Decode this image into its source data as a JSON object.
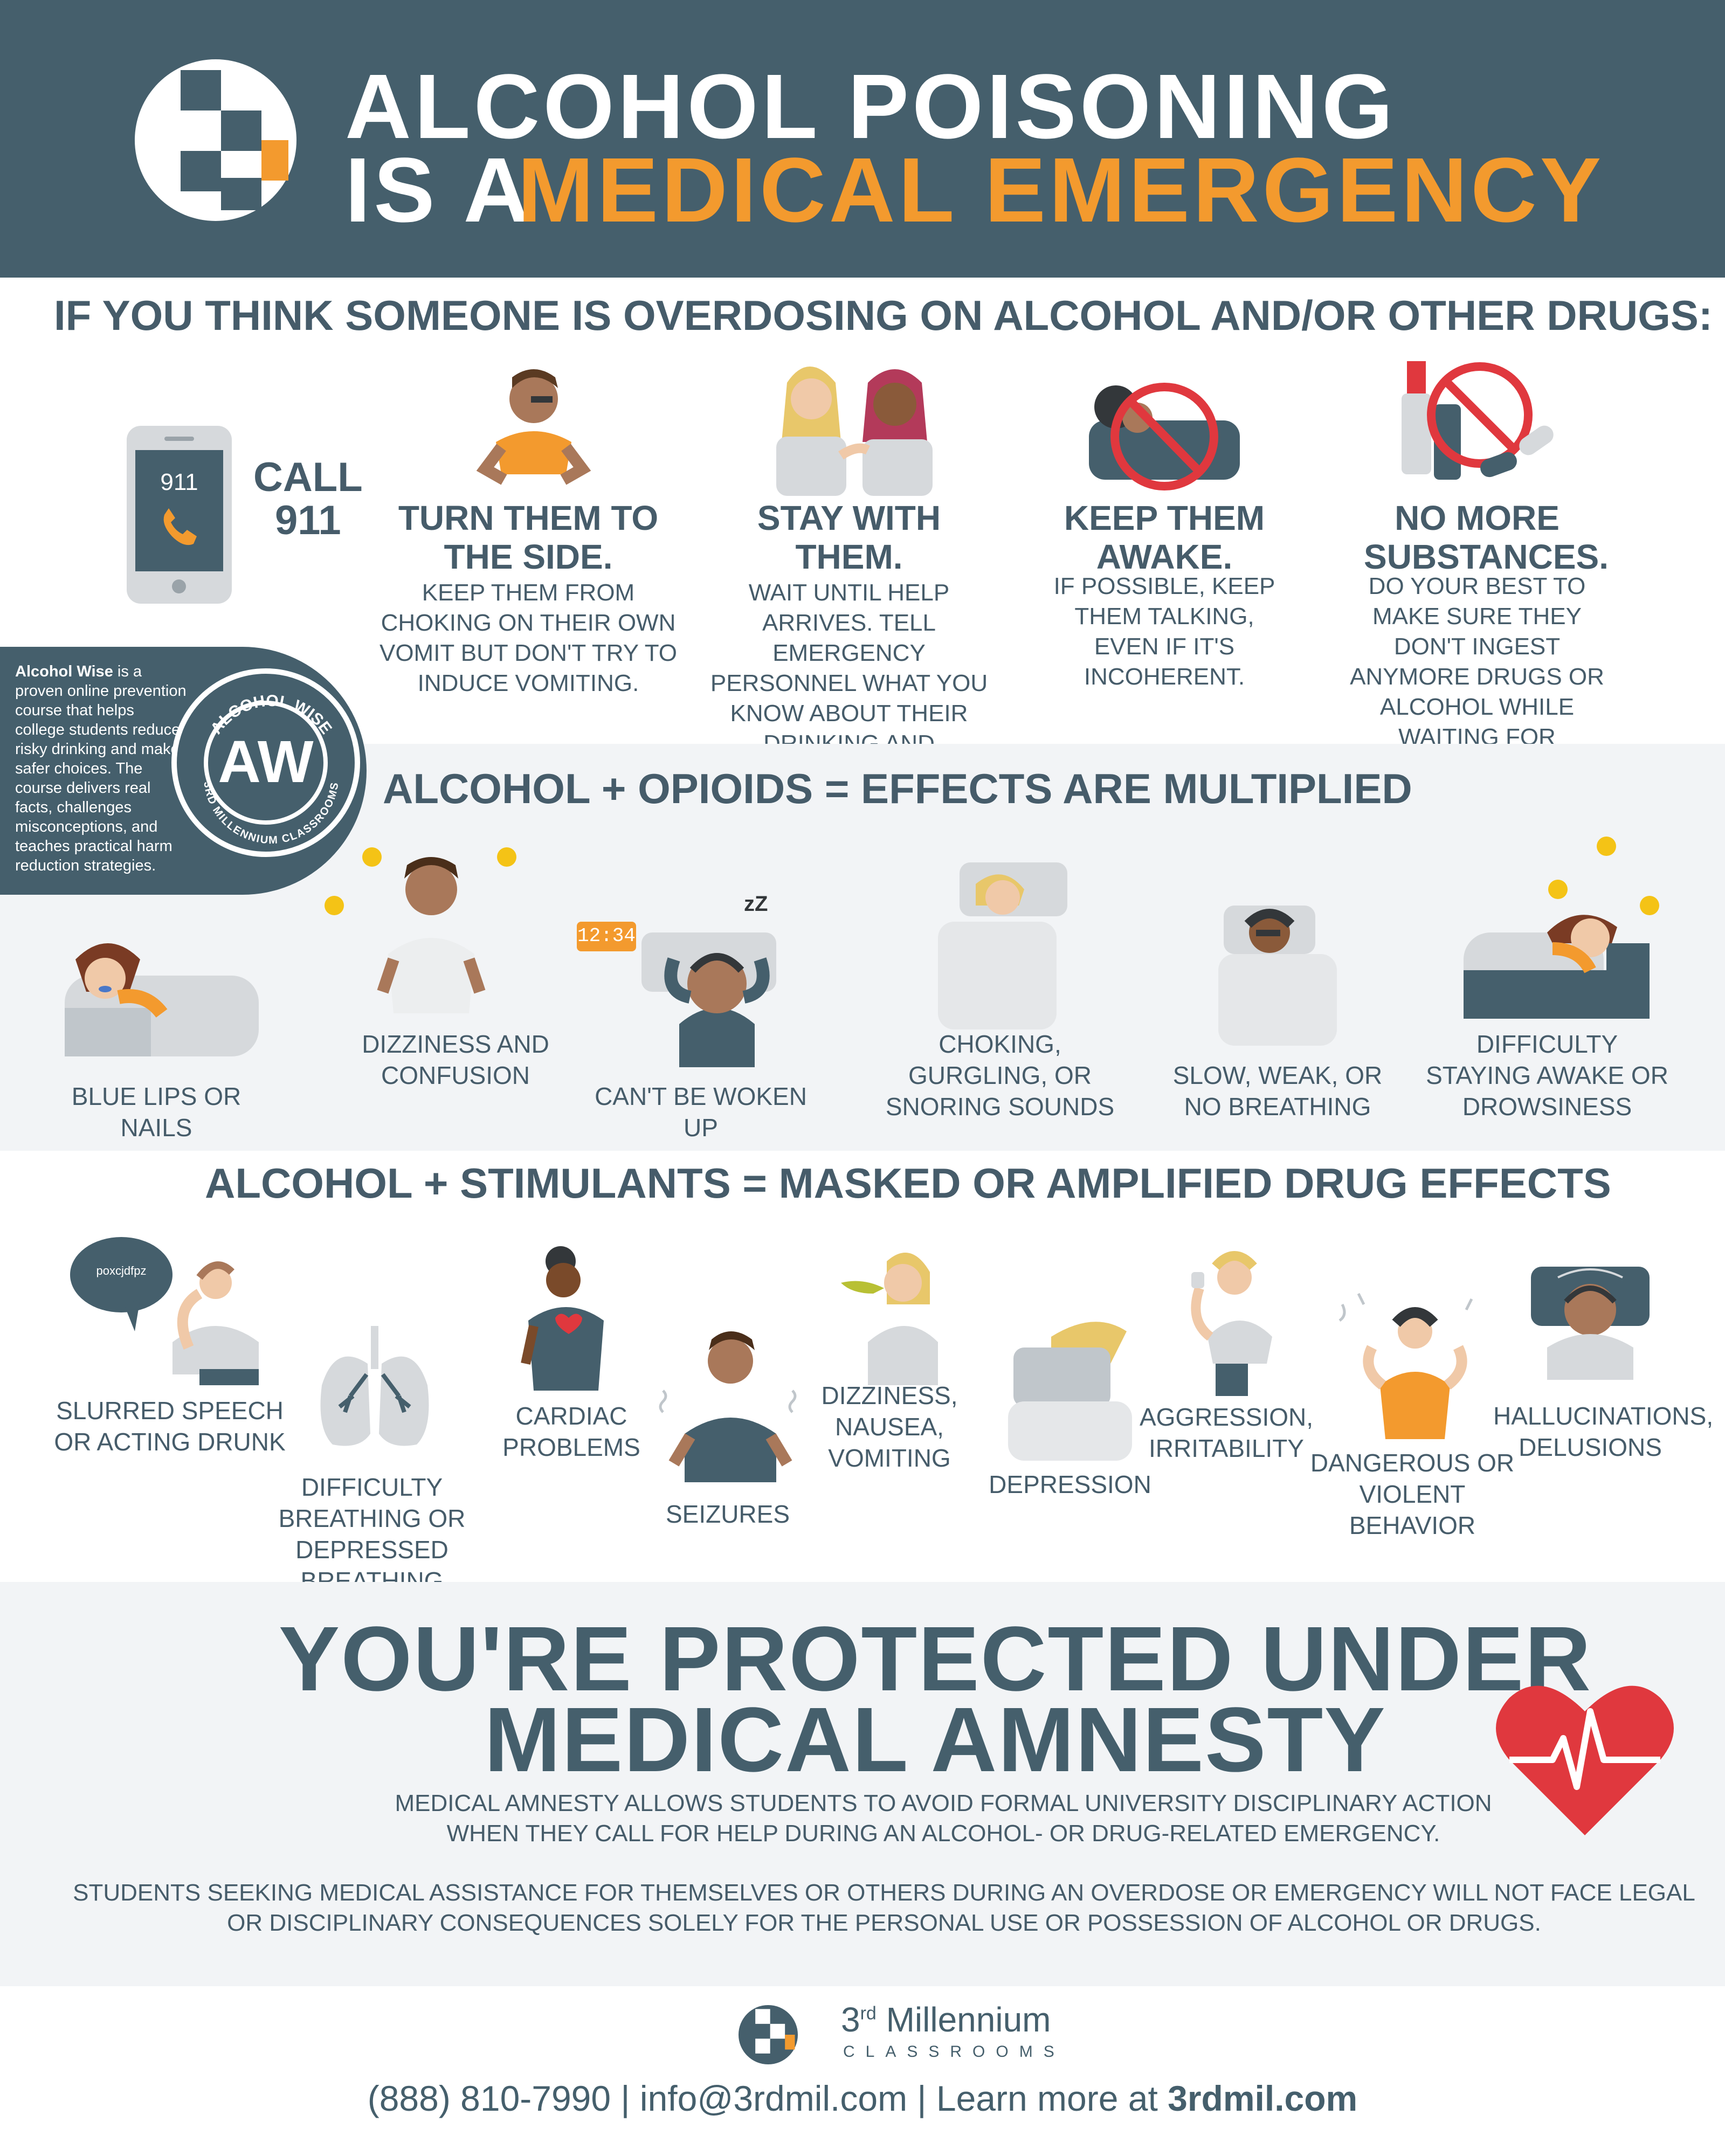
{
  "header": {
    "title_line1": "ALCOHOL POISONING",
    "title_line2_prefix": "IS A",
    "title_line2_highlight": "MEDICAL EMERGENCY"
  },
  "colors": {
    "brand_dark": "#455f6c",
    "accent_orange": "#f39a2e",
    "alert_red": "#e0383e",
    "band_gray": "#f2f4f6"
  },
  "overdose_section": {
    "heading": "IF YOU THINK SOMEONE IS OVERDOSING ON ALCOHOL AND/OR OTHER DRUGS:",
    "call": {
      "phone_screen": "911",
      "label_line1": "CALL",
      "label_line2": "911",
      "icon": "phone-icon"
    },
    "steps": [
      {
        "title": "TURN THEM TO THE SIDE.",
        "desc": "KEEP THEM FROM CHOKING ON THEIR OWN VOMIT BUT DON'T TRY TO INDUCE VOMITING.",
        "icon": "person-side-icon"
      },
      {
        "title": "STAY WITH THEM.",
        "desc": "WAIT UNTIL HELP ARRIVES. TELL EMERGENCY PERSONNEL WHAT YOU KNOW ABOUT THEIR DRINKING AND CONDITION.",
        "icon": "two-people-icon"
      },
      {
        "title": "KEEP THEM AWAKE.",
        "desc": "IF POSSIBLE, KEEP THEM TALKING, EVEN IF IT'S INCOHERENT.",
        "icon": "no-sleeping-icon"
      },
      {
        "title": "NO MORE SUBSTANCES.",
        "desc": "DO YOUR BEST TO MAKE SURE THEY DON'T INGEST ANYMORE DRUGS OR ALCOHOL WHILE WAITING FOR EMERGENCY PERSONNEL.",
        "icon": "no-substances-icon"
      }
    ]
  },
  "alcohol_wise": {
    "brand": "Alcohol Wise",
    "description": " is a proven online prevention course that helps college students reduce risky drinking and make safer choices. The course delivers real facts, challenges misconceptions, and teaches practical harm reduction strategies.",
    "badge_top": "ALCOHOL WISE",
    "badge_letters": "AW",
    "badge_bottom": "3RD MILLENNIUM CLASSROOMS"
  },
  "opioids_section": {
    "heading": "ALCOHOL + OPIOIDS = EFFECTS ARE MULTIPLIED",
    "clock_display": "12:34",
    "items": [
      {
        "label": "BLUE LIPS OR NAILS",
        "icon": "blue-lips-icon"
      },
      {
        "label": "DIZZINESS AND CONFUSION",
        "icon": "dizzy-person-icon"
      },
      {
        "label": "CAN'T BE WOKEN UP",
        "icon": "alarm-sleeper-icon"
      },
      {
        "label": "CHOKING, GURGLING, OR SNORING SOUNDS",
        "icon": "snoring-icon"
      },
      {
        "label": "SLOW, WEAK, OR NO BREATHING",
        "icon": "weak-breathing-icon"
      },
      {
        "label": "DIFFICULTY STAYING AWAKE OR DROWSINESS",
        "icon": "drowsy-icon"
      }
    ]
  },
  "stimulants_section": {
    "heading": "ALCOHOL + STIMULANTS = MASKED OR AMPLIFIED DRUG EFFECTS",
    "speech_bubble": "poxcjdfpz",
    "items": [
      {
        "label": "SLURRED SPEECH OR ACTING DRUNK",
        "icon": "slurred-speech-icon"
      },
      {
        "label": "DIFFICULTY BREATHING OR DEPRESSED BREATHING",
        "icon": "lungs-icon"
      },
      {
        "label": "CARDIAC PROBLEMS",
        "icon": "cardiac-icon"
      },
      {
        "label": "SEIZURES",
        "icon": "seizure-icon"
      },
      {
        "label": "DIZZINESS, NAUSEA, VOMITING",
        "icon": "vomiting-icon"
      },
      {
        "label": "DEPRESSION",
        "icon": "depression-icon"
      },
      {
        "label": "AGGRESSION, IRRITABILITY",
        "icon": "aggression-icon"
      },
      {
        "label": "DANGEROUS OR VIOLENT BEHAVIOR",
        "icon": "violent-behavior-icon"
      },
      {
        "label": "HALLUCINATIONS, DELUSIONS",
        "icon": "hallucination-icon"
      }
    ]
  },
  "amnesty": {
    "title_line1": "YOU'RE PROTECTED UNDER",
    "title_line2": "MEDICAL AMNESTY",
    "para1_line1": "MEDICAL AMNESTY ALLOWS STUDENTS TO AVOID FORMAL UNIVERSITY DISCIPLINARY ACTION",
    "para1_line2": "WHEN THEY CALL FOR HELP DURING AN ALCOHOL- OR DRUG-RELATED EMERGENCY.",
    "para2_line1": "STUDENTS SEEKING MEDICAL ASSISTANCE FOR THEMSELVES OR OTHERS DURING AN OVERDOSE OR EMERGENCY WILL NOT FACE LEGAL",
    "para2_line2": "OR DISCIPLINARY CONSEQUENCES SOLELY FOR THE PERSONAL USE OR POSSESSION OF ALCOHOL OR DRUGS.",
    "icon": "heartbeat-icon"
  },
  "footer": {
    "brand_name_prefix": "3",
    "brand_name_sup": "rd",
    "brand_name_rest": " Millennium",
    "brand_sub": "CLASSROOMS",
    "phone": "(888) 810-7990",
    "sep": " | ",
    "email": "info@3rdmil.com",
    "learn_prefix": "Learn more at ",
    "website": "3rdmil.com"
  }
}
